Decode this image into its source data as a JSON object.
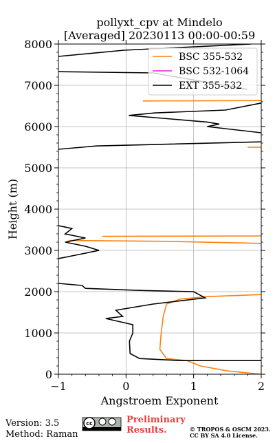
{
  "chart_data": {
    "type": "profile",
    "title": [
      "pollyxt_cpv at Mindelo",
      "[Averaged] 20230113 00:00-00:59"
    ],
    "x_label": "Angstroem Exponent",
    "y_label": "Height (m)",
    "xlim": [
      -1,
      2
    ],
    "ylim": [
      0,
      8000
    ],
    "xticks": [
      {
        "value": -1,
        "label": "−1"
      },
      0,
      1,
      2
    ],
    "yticks": [
      0,
      1000,
      2000,
      3000,
      4000,
      5000,
      6000,
      7000,
      8000
    ],
    "grid": true,
    "legend": "upper right",
    "series": [
      {
        "name": "BSC 355-532",
        "color": "#ff7f0e",
        "x": [
          2,
          1.5,
          1.1,
          0.9,
          0.6,
          0.5,
          0.52,
          0.55,
          0.6,
          0.8,
          1.2,
          2,
          null,
          2,
          0.6,
          -0.85,
          null,
          -0.35,
          2,
          null,
          1.8,
          2,
          null,
          0.25,
          2
        ],
        "y": [
          0,
          80,
          200,
          330,
          380,
          600,
          1000,
          1400,
          1700,
          1820,
          1880,
          1930,
          null,
          3170,
          3220,
          3240,
          null,
          3340,
          3350,
          null,
          5500,
          5500,
          null,
          6620,
          6630
        ]
      },
      {
        "name": "BSC 532-1064",
        "color": "#e020e0",
        "x": [],
        "y": []
      },
      {
        "name": "EXT 355-532",
        "color": "#000000",
        "x": [
          1.85,
          -0.03,
          -1,
          null,
          -1,
          0.4,
          1.8,
          null,
          2,
          1.47,
          0.42,
          0.04,
          1.2,
          1.38,
          1.2,
          2,
          null,
          2,
          -0.44,
          -1,
          null,
          -1,
          -0.8,
          -0.9,
          -0.6,
          -0.9,
          -0.6,
          -0.4,
          -0.7,
          -1,
          null,
          -1,
          -0.65,
          -0.6,
          0.2,
          1.0,
          1.17,
          0.4,
          -0.15,
          -0.05,
          -0.3,
          0.1,
          0.1,
          0.05,
          0.06,
          0.2,
          0.8,
          2
        ],
        "y": [
          8000,
          7850,
          7700,
          null,
          7330,
          7300,
          6900,
          null,
          6570,
          6400,
          6330,
          6270,
          6110,
          6060,
          6000,
          5850,
          null,
          5630,
          5530,
          5450,
          null,
          3600,
          3530,
          3400,
          3300,
          3200,
          3100,
          3000,
          2900,
          2800,
          null,
          2200,
          2150,
          2080,
          2030,
          2000,
          1850,
          1700,
          1550,
          1400,
          1350,
          1200,
          1000,
          800,
          500,
          380,
          330,
          330
        ]
      }
    ]
  },
  "footer": {
    "version": "Version: 3.5",
    "method": "Method: Raman",
    "status": [
      "Preliminary",
      "Results."
    ],
    "copyright": [
      "© TROPOS & OSCM 2023.",
      "CC BY SA 4.0 License."
    ]
  }
}
